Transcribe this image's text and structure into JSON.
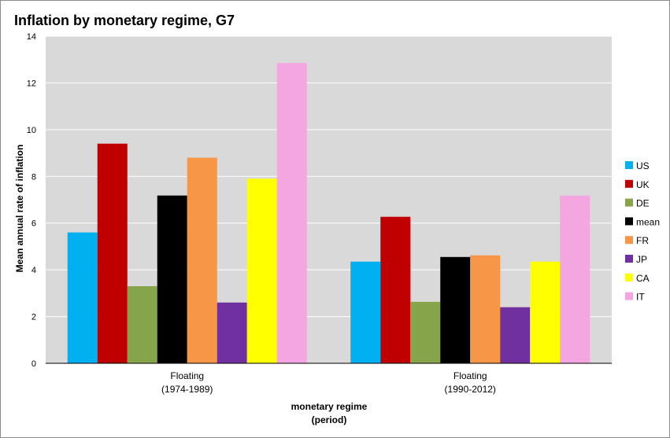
{
  "chart_data": {
    "type": "bar",
    "title": "Inflation by monetary regime, G7",
    "xlabel": [
      "monetary regime",
      "(period)"
    ],
    "ylabel": "Mean annual rate of inflation",
    "ylim": [
      0,
      14
    ],
    "yticks": [
      0,
      2,
      4,
      6,
      8,
      10,
      12,
      14
    ],
    "grid": true,
    "legend_position": "right",
    "categories": [
      [
        "Floating",
        "(1974-1989)"
      ],
      [
        "Floating",
        "(1990-2012)"
      ]
    ],
    "series": [
      {
        "name": "US",
        "color": "#00b0f0",
        "values": [
          5.6,
          4.35
        ]
      },
      {
        "name": "UK",
        "color": "#c00000",
        "values": [
          9.4,
          6.27
        ]
      },
      {
        "name": "DE",
        "color": "#86a44a",
        "values": [
          3.3,
          2.63
        ]
      },
      {
        "name": "mean",
        "color": "#000000",
        "values": [
          7.18,
          4.55
        ]
      },
      {
        "name": "FR",
        "color": "#f79646",
        "values": [
          8.8,
          4.62
        ]
      },
      {
        "name": "JP",
        "color": "#7030a0",
        "values": [
          2.6,
          2.4
        ]
      },
      {
        "name": "CA",
        "color": "#ffff00",
        "values": [
          7.9,
          4.35
        ]
      },
      {
        "name": "IT",
        "color": "#f4a6e0",
        "values": [
          12.85,
          7.18
        ]
      }
    ]
  }
}
